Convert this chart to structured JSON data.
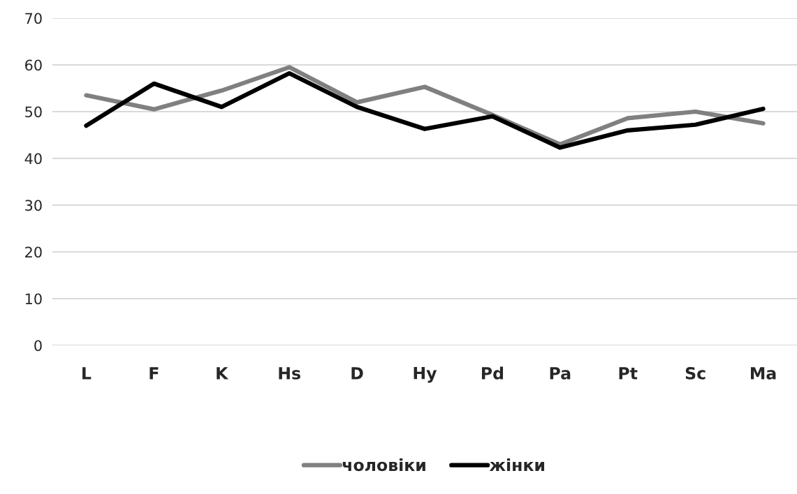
{
  "chart_data": {
    "type": "line",
    "categories": [
      "L",
      "F",
      "K",
      "Hs",
      "D",
      "Hy",
      "Pd",
      "Pa",
      "Pt",
      "Sc",
      "Ma"
    ],
    "series": [
      {
        "name": "чоловіки",
        "color": "#808080",
        "values": [
          53.5,
          50.5,
          54.5,
          59.5,
          52,
          55.3,
          49.3,
          43,
          48.6,
          50,
          47.5
        ]
      },
      {
        "name": "жінки",
        "color": "#000000",
        "values": [
          47,
          56,
          51,
          58.2,
          51,
          46.3,
          49,
          42.3,
          46,
          47.2,
          50.6
        ]
      }
    ],
    "ylim": [
      0,
      70
    ],
    "yticks": [
      0,
      10,
      20,
      30,
      40,
      50,
      60,
      70
    ],
    "grid": "y",
    "legend": "bottom",
    "marker": "none",
    "line_style": "solid"
  }
}
